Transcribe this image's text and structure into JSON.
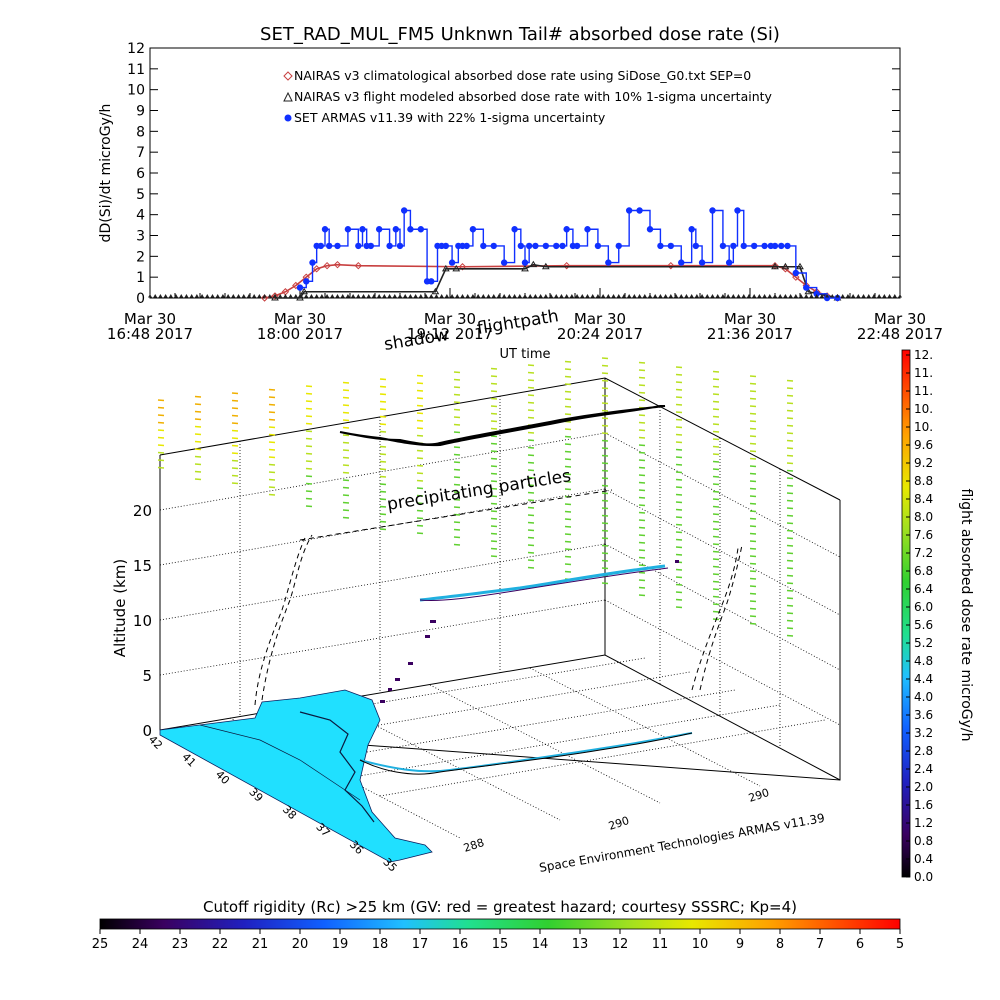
{
  "chart_data": [
    {
      "type": "line",
      "title": "SET_RAD_MUL_FM5 Unknwn Tail#  absorbed dose rate (Si)",
      "xlabel": "UT time",
      "ylabel": "dD(Si)/dt microGy/h",
      "ylim": [
        0,
        12
      ],
      "yticks": [
        "0",
        "1",
        "2",
        "3",
        "4",
        "5",
        "6",
        "7",
        "8",
        "9",
        "10",
        "11",
        "12"
      ],
      "xticks": [
        {
          "line1": "Mar 30",
          "line2": "16:48 2017"
        },
        {
          "line1": "Mar 30",
          "line2": "18:00 2017"
        },
        {
          "line1": "Mar 30",
          "line2": "19:12 2017"
        },
        {
          "line1": "Mar 30",
          "line2": "20:24 2017"
        },
        {
          "line1": "Mar 30",
          "line2": "21:36 2017"
        },
        {
          "line1": "Mar 30",
          "line2": "22:48 2017"
        }
      ],
      "x_unit": "minutes after 16:48 UT",
      "xlim": [
        0,
        360
      ],
      "legend_position": "top-left",
      "series": [
        {
          "name": "NAIRAS v3 climatological absorbed dose rate using SiDose_G0.txt SEP=0",
          "color": "#c84040",
          "marker": "diamond",
          "x": [
            55,
            60,
            65,
            70,
            75,
            80,
            85,
            90,
            100,
            150,
            200,
            250,
            300,
            305,
            310,
            315,
            320,
            325,
            330
          ],
          "y": [
            0.0,
            0.1,
            0.3,
            0.6,
            1.0,
            1.4,
            1.55,
            1.6,
            1.55,
            1.5,
            1.55,
            1.55,
            1.55,
            1.4,
            1.0,
            0.6,
            0.3,
            0.1,
            0.0
          ]
        },
        {
          "name": "NAIRAS v3 flight modeled absorbed dose rate with 10% 1-sigma uncertainty",
          "color": "#222222",
          "marker": "triangle",
          "x": [
            60,
            72,
            74,
            137,
            142,
            147,
            180,
            184,
            190,
            300,
            305,
            312,
            316,
            330
          ],
          "y": [
            0.0,
            0.0,
            0.3,
            0.3,
            1.4,
            1.4,
            1.4,
            1.6,
            1.5,
            1.5,
            1.5,
            1.5,
            0.3,
            0.0
          ]
        },
        {
          "name": "SET ARMAS v11.39 with 22% 1-sigma uncertainty",
          "color": "#1030ff",
          "marker": "circle",
          "x": [
            72,
            75,
            78,
            80,
            82,
            84,
            86,
            90,
            95,
            100,
            102,
            104,
            106,
            110,
            115,
            118,
            120,
            122,
            125,
            130,
            133,
            135,
            138,
            140,
            142,
            145,
            148,
            150,
            152,
            155,
            160,
            165,
            170,
            175,
            178,
            180,
            182,
            185,
            190,
            195,
            198,
            200,
            203,
            205,
            210,
            215,
            220,
            225,
            230,
            235,
            240,
            245,
            250,
            255,
            260,
            262,
            265,
            270,
            275,
            278,
            280,
            282,
            285,
            290,
            295,
            298,
            300,
            303,
            306,
            310,
            315,
            320,
            325,
            330
          ],
          "y": [
            0.5,
            0.8,
            1.7,
            2.5,
            2.5,
            3.3,
            2.5,
            2.5,
            3.3,
            2.5,
            3.3,
            2.5,
            2.5,
            3.3,
            2.5,
            3.3,
            2.5,
            4.2,
            3.3,
            3.3,
            0.8,
            0.8,
            2.5,
            2.5,
            2.5,
            1.7,
            2.5,
            2.5,
            2.5,
            3.3,
            2.5,
            2.5,
            1.7,
            3.3,
            2.5,
            1.7,
            2.5,
            2.5,
            2.5,
            2.5,
            2.5,
            3.3,
            2.5,
            2.5,
            3.3,
            2.5,
            1.7,
            2.5,
            4.2,
            4.2,
            3.3,
            2.5,
            2.5,
            1.7,
            3.3,
            2.5,
            1.7,
            4.2,
            2.5,
            1.7,
            2.5,
            4.2,
            2.5,
            2.5,
            2.5,
            2.5,
            2.5,
            2.5,
            2.5,
            1.2,
            0.5,
            0.2,
            0.0,
            0.0
          ]
        }
      ]
    },
    {
      "type": "scatter",
      "title": "",
      "zlabel": "Altitude (km)",
      "zticks": [
        "0",
        "5",
        "10",
        "15",
        "20"
      ],
      "lat_ticks": [
        "42",
        "41",
        "40",
        "39",
        "38",
        "37",
        "36",
        "35"
      ],
      "lon_ticks": [
        "288",
        "290",
        "290"
      ],
      "annotations": [
        "shadow",
        "flightpath",
        "precipitating particles"
      ],
      "credit": "Space Environment Technologies ARMAS v11.39",
      "colorbar_label": "flight absorbed dose rate microGy/h",
      "colorbar_ticks": [
        "12.",
        "11.",
        "11.",
        "10.",
        "10.",
        "9.6",
        "9.2",
        "8.8",
        "8.4",
        "8.0",
        "7.6",
        "7.2",
        "6.8",
        "6.4",
        "6.0",
        "5.6",
        "5.2",
        "4.8",
        "4.4",
        "4.0",
        "3.6",
        "3.2",
        "2.8",
        "2.4",
        "2.0",
        "1.6",
        "1.2",
        "0.8",
        "0.4",
        "0.0"
      ]
    },
    {
      "type": "heatmap",
      "title": "Cutoff rigidity (Rc) >25 km (GV: red = greatest hazard; courtesy SSSRC; Kp=4)",
      "ticks": [
        "25",
        "24",
        "23",
        "22",
        "21",
        "20",
        "19",
        "18",
        "17",
        "16",
        "15",
        "14",
        "13",
        "12",
        "11",
        "10",
        "9",
        "8",
        "7",
        "6",
        "5"
      ]
    }
  ]
}
